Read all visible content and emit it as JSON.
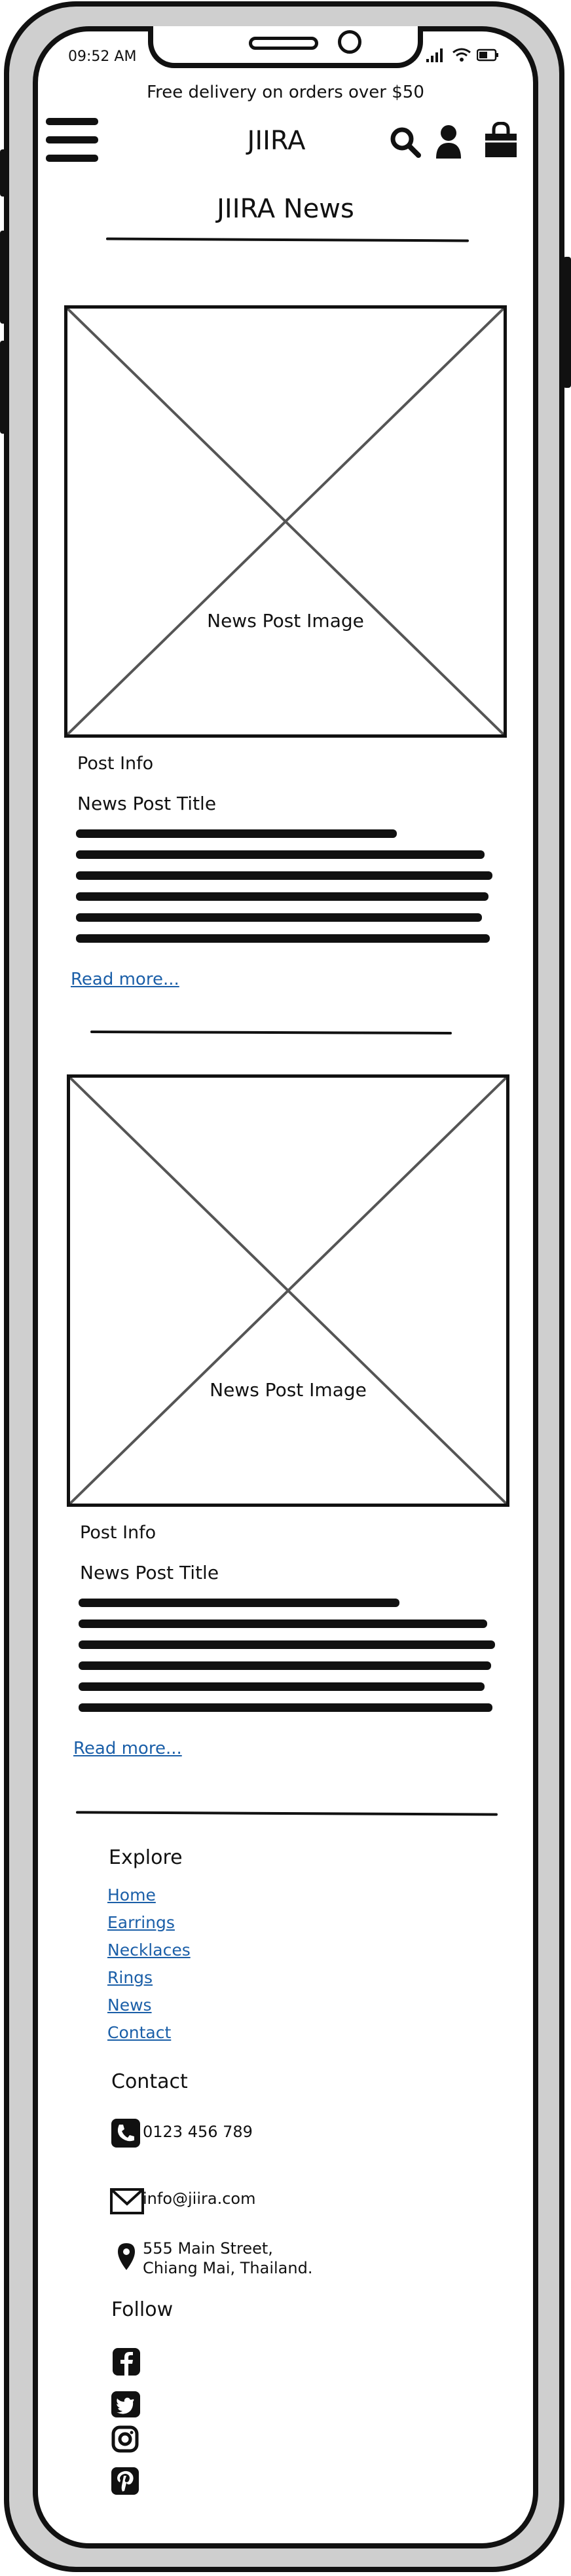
{
  "status_bar": {
    "time": "09:52 AM"
  },
  "promo_bar": {
    "text": "Free delivery on orders over $50"
  },
  "header": {
    "logo": "JIIRA",
    "icons": [
      "menu-icon",
      "search-icon",
      "user-icon",
      "shopping-bag-icon"
    ]
  },
  "page": {
    "title": "JIIRA News"
  },
  "posts": [
    {
      "image_label": "News Post Image",
      "info": "Post Info",
      "title": "News Post Title",
      "read_more": "Read more..."
    },
    {
      "image_label": "News Post Image",
      "info": "Post Info",
      "title": "News Post Title",
      "read_more": "Read more..."
    }
  ],
  "footer": {
    "explore": {
      "heading": "Explore",
      "links": [
        "Home",
        "Earrings",
        "Necklaces",
        "Rings",
        "News",
        "Contact"
      ]
    },
    "contact": {
      "heading": "Contact",
      "phone": "0123 456 789",
      "email": "info@jiira.com",
      "address_line1": "555 Main Street,",
      "address_line2": "Chiang Mai, Thailand."
    },
    "follow": {
      "heading": "Follow",
      "icons": [
        "facebook-icon",
        "twitter-icon",
        "instagram-icon",
        "pinterest-icon"
      ]
    }
  },
  "colors": {
    "link": "#1b5fa8",
    "ink": "#111111",
    "frame": "#cfcfcf"
  }
}
